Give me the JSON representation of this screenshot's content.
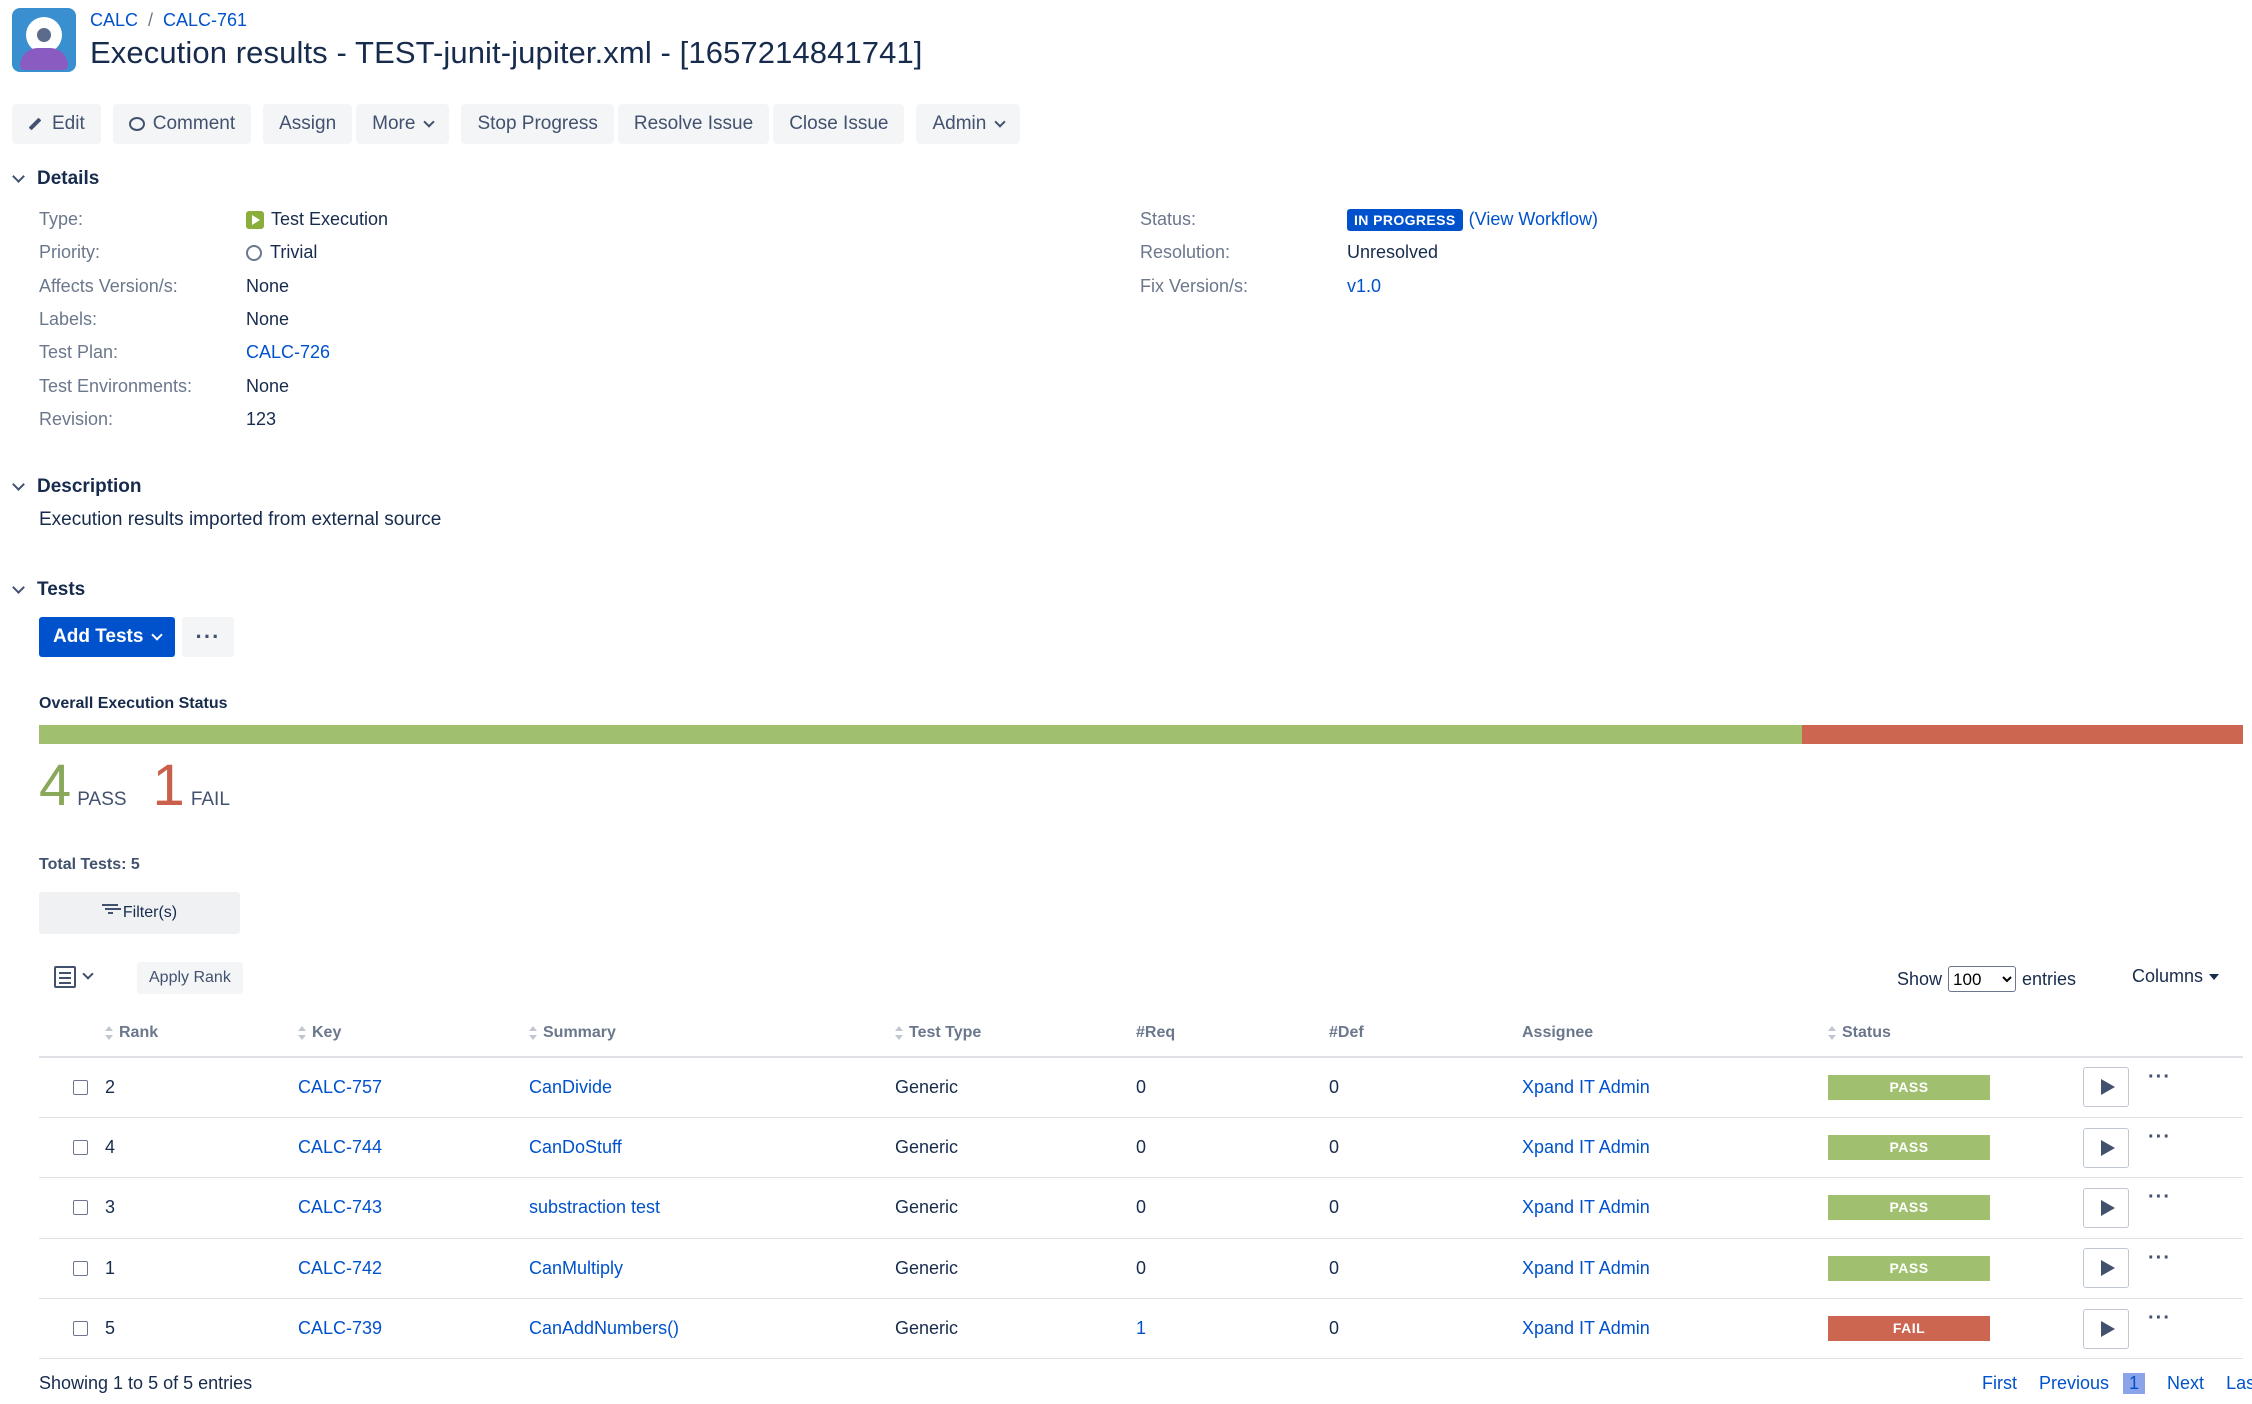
{
  "header": {
    "breadcrumb": [
      "CALC",
      "CALC-761"
    ],
    "title": "Execution results - TEST-junit-jupiter.xml - [1657214841741]"
  },
  "toolbar": {
    "edit": "Edit",
    "comment": "Comment",
    "assign": "Assign",
    "more": "More",
    "stop_progress": "Stop Progress",
    "resolve_issue": "Resolve Issue",
    "close_issue": "Close Issue",
    "admin": "Admin"
  },
  "details": {
    "heading": "Details",
    "left": [
      {
        "label": "Type:",
        "value": "Test Execution"
      },
      {
        "label": "Priority:",
        "value": "Trivial"
      },
      {
        "label": "Affects Version/s:",
        "value": "None"
      },
      {
        "label": "Labels:",
        "value": "None"
      },
      {
        "label": "Test Plan:",
        "value": "CALC-726"
      },
      {
        "label": "Test Environments:",
        "value": "None"
      },
      {
        "label": "Revision:",
        "value": "123"
      }
    ],
    "right": [
      {
        "label": "Status:",
        "value": "IN PROGRESS",
        "extra": "(View Workflow)"
      },
      {
        "label": "Resolution:",
        "value": "Unresolved"
      },
      {
        "label": "Fix Version/s:",
        "value": "v1.0"
      }
    ]
  },
  "description": {
    "heading": "Description",
    "text": "Execution results imported from external source"
  },
  "tests": {
    "heading": "Tests",
    "add_tests": "Add Tests",
    "more": "···",
    "overall_label": "Overall Execution Status",
    "pass_count": "4",
    "pass_label": "PASS",
    "fail_count": "1",
    "fail_label": "FAIL",
    "pass_fraction": 0.8,
    "fail_fraction": 0.2,
    "total": "Total Tests: 5",
    "filters": "Filter(s)",
    "apply_rank": "Apply Rank",
    "show": "Show",
    "entries_value": "100",
    "entries": "entries",
    "columns": "Columns",
    "headers": {
      "rank": "Rank",
      "key": "Key",
      "summary": "Summary",
      "type": "Test Type",
      "req": "#Req",
      "def": "#Def",
      "assignee": "Assignee",
      "status": "Status"
    },
    "rows": [
      {
        "rank": "2",
        "key": "CALC-757",
        "summary": "CanDivide",
        "type": "Generic",
        "req": "0",
        "def": "0",
        "assignee": "Xpand IT Admin",
        "status": "PASS"
      },
      {
        "rank": "4",
        "key": "CALC-744",
        "summary": "CanDoStuff",
        "type": "Generic",
        "req": "0",
        "def": "0",
        "assignee": "Xpand IT Admin",
        "status": "PASS"
      },
      {
        "rank": "3",
        "key": "CALC-743",
        "summary": "substraction test",
        "type": "Generic",
        "req": "0",
        "def": "0",
        "assignee": "Xpand IT Admin",
        "status": "PASS"
      },
      {
        "rank": "1",
        "key": "CALC-742",
        "summary": "CanMultiply",
        "type": "Generic",
        "req": "0",
        "def": "0",
        "assignee": "Xpand IT Admin",
        "status": "PASS"
      },
      {
        "rank": "5",
        "key": "CALC-739",
        "summary": "CanAddNumbers()",
        "type": "Generic",
        "req": "1",
        "def": "0",
        "assignee": "Xpand IT Admin",
        "status": "FAIL"
      }
    ],
    "showing": "Showing 1 to 5 of 5 entries",
    "pager": {
      "first": "First",
      "previous": "Previous",
      "current": "1",
      "next": "Next",
      "last": "Last"
    }
  },
  "colors": {
    "pass": "#a0c06f",
    "fail": "#cd6651",
    "pass_text": "#8aa85a",
    "fail_text": "#c8604b",
    "accent": "#0052cc"
  }
}
